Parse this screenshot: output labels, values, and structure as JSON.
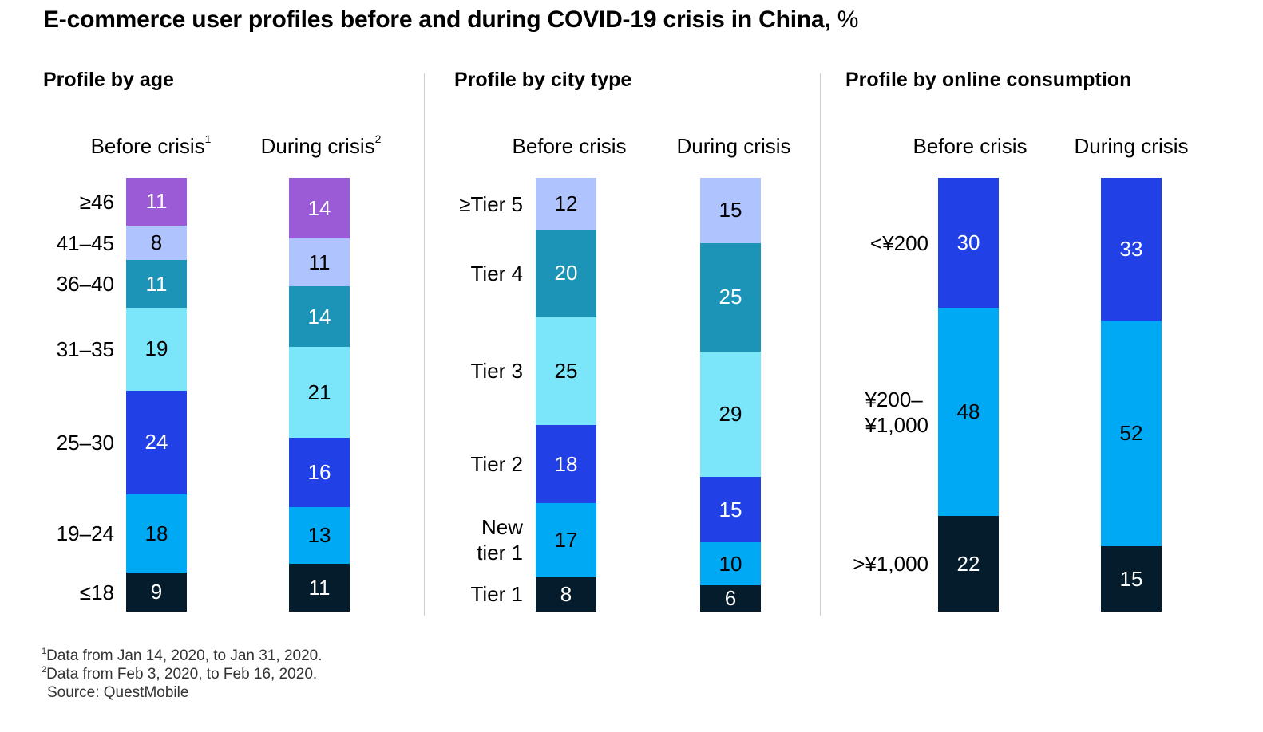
{
  "title": "E-commerce user profiles before and during COVID-19 crisis in China,",
  "title_unit": "%",
  "chart_data": [
    {
      "type": "bar",
      "stacked": true,
      "title": "Profile by age",
      "columns": [
        {
          "label": "Before crisis",
          "note": "1"
        },
        {
          "label": "During crisis",
          "note": "2"
        }
      ],
      "categories": [
        "≤18",
        "19–24",
        "25–30",
        "31–35",
        "36–40",
        "41–45",
        "≥46"
      ],
      "series": [
        {
          "values": [
            9,
            18,
            24,
            19,
            11,
            8,
            11
          ]
        },
        {
          "values": [
            11,
            13,
            16,
            21,
            14,
            11,
            14
          ]
        }
      ],
      "colors": [
        "#051C2C",
        "#00A9F4",
        "#2140E6",
        "#7BE5F9",
        "#1B94B8",
        "#AFC3FF",
        "#9C5BD6"
      ],
      "text_colors": [
        "#ffffff",
        "#000000",
        "#ffffff",
        "#000000",
        "#ffffff",
        "#000000",
        "#ffffff"
      ]
    },
    {
      "type": "bar",
      "stacked": true,
      "title": "Profile by city type",
      "columns": [
        {
          "label": "Before crisis",
          "note": ""
        },
        {
          "label": "During crisis",
          "note": ""
        }
      ],
      "categories": [
        "Tier 1",
        "New tier 1",
        "Tier 2",
        "Tier 3",
        "Tier 4",
        "≥Tier 5"
      ],
      "series": [
        {
          "values": [
            8,
            17,
            18,
            25,
            20,
            12
          ]
        },
        {
          "values": [
            6,
            10,
            15,
            29,
            25,
            15
          ]
        }
      ],
      "colors": [
        "#051C2C",
        "#00A9F4",
        "#2140E6",
        "#7BE5F9",
        "#1B94B8",
        "#AFC3FF"
      ],
      "text_colors": [
        "#ffffff",
        "#000000",
        "#ffffff",
        "#000000",
        "#ffffff",
        "#000000"
      ]
    },
    {
      "type": "bar",
      "stacked": true,
      "title": "Profile by online consumption",
      "columns": [
        {
          "label": "Before crisis",
          "note": ""
        },
        {
          "label": "During crisis",
          "note": ""
        }
      ],
      "categories": [
        ">¥1,000",
        "¥200–¥1,000",
        "<¥200"
      ],
      "series": [
        {
          "values": [
            22,
            48,
            30
          ]
        },
        {
          "values": [
            15,
            52,
            33
          ]
        }
      ],
      "colors": [
        "#051C2C",
        "#00A9F4",
        "#2140E6"
      ],
      "text_colors": [
        "#ffffff",
        "#000000",
        "#ffffff"
      ]
    }
  ],
  "footnotes": [
    {
      "mark": "1",
      "text": "Data from Jan 14, 2020, to Jan 31, 2020."
    },
    {
      "mark": "2",
      "text": "Data from Feb 3, 2020, to Feb 16, 2020."
    },
    {
      "mark": "",
      "text": "Source: QuestMobile"
    }
  ]
}
